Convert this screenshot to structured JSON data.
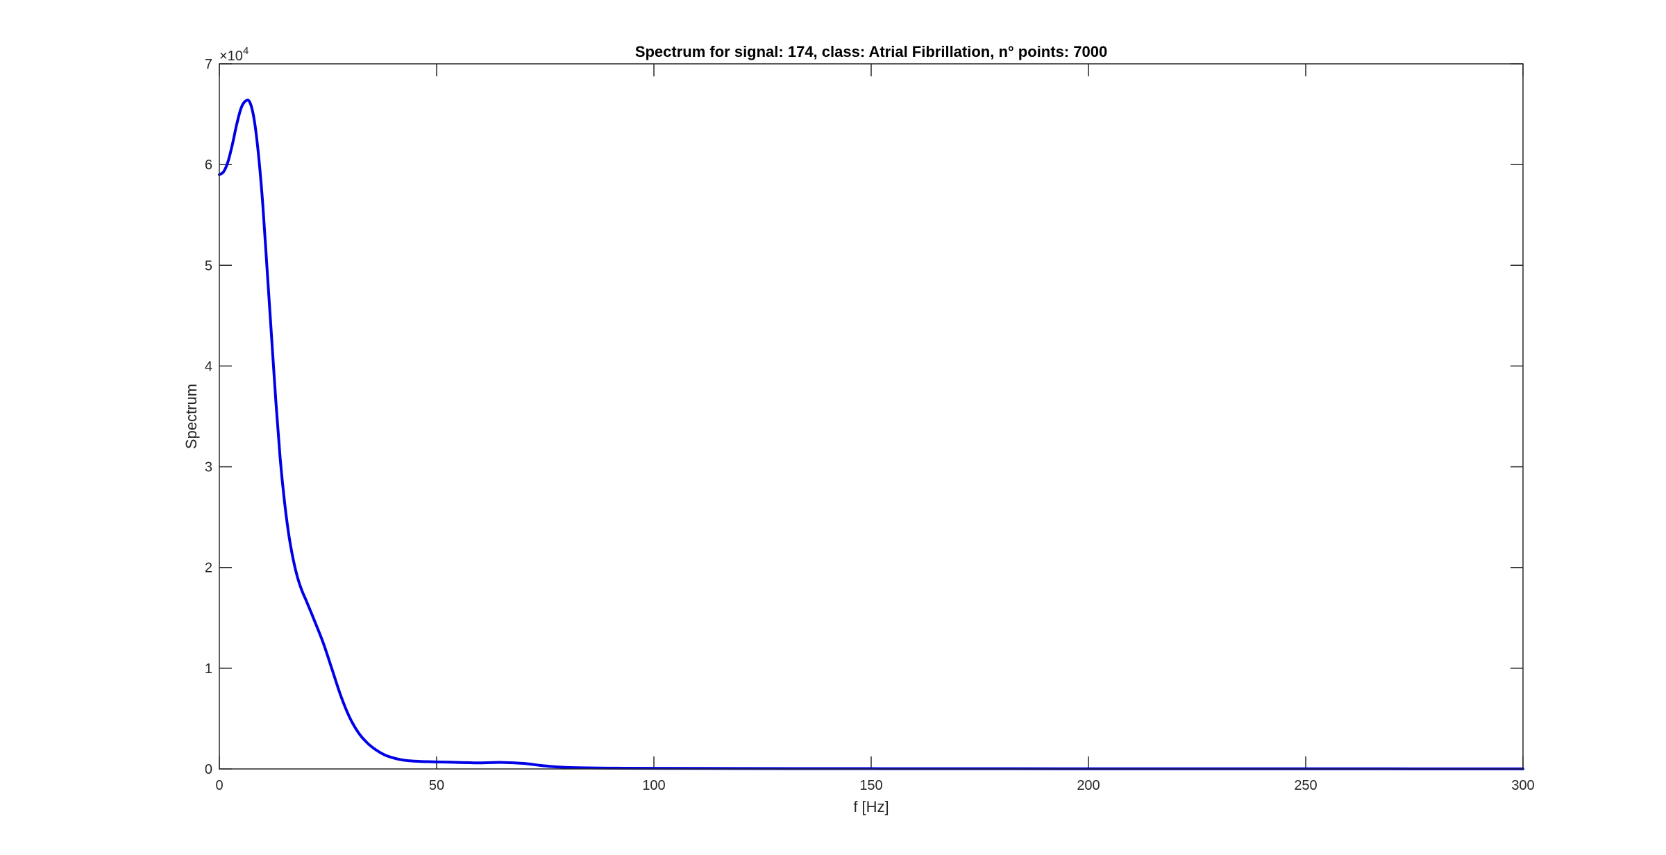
{
  "chart_data": {
    "type": "line",
    "title": "Spectrum for signal: 174, class: Atrial Fibrillation, n° points: 7000",
    "xlabel": "f [Hz]",
    "ylabel": "Spectrum",
    "xlim": [
      0,
      300
    ],
    "ylim": [
      0,
      70000
    ],
    "y_exponent_label": {
      "base": "×10",
      "exponent": "4"
    },
    "x_ticks": [
      0,
      50,
      100,
      150,
      200,
      250,
      300
    ],
    "x_tick_labels": [
      "0",
      "50",
      "100",
      "150",
      "200",
      "250",
      "300"
    ],
    "y_ticks": [
      0,
      10000,
      20000,
      30000,
      40000,
      50000,
      60000,
      70000
    ],
    "y_tick_labels": [
      "0",
      "1",
      "2",
      "3",
      "4",
      "5",
      "6",
      "7"
    ],
    "grid": false,
    "box": true,
    "colors": {
      "line": "#0000e6",
      "axes": "#262626",
      "background": "#ffffff"
    },
    "series": [
      {
        "x": [
          0,
          1,
          2,
          3,
          4,
          5,
          6,
          7,
          8,
          9,
          10,
          11,
          12,
          13,
          14,
          15,
          16,
          17,
          18,
          19,
          20,
          22,
          24,
          26,
          28,
          30,
          32,
          34,
          36,
          38,
          40,
          42,
          44,
          46,
          48,
          50,
          55,
          60,
          65,
          70,
          75,
          80,
          90,
          100,
          120,
          150,
          200,
          250,
          300
        ],
        "y": [
          59000,
          59300,
          60300,
          62000,
          64000,
          65600,
          66300,
          66200,
          64500,
          61000,
          56000,
          49500,
          43000,
          36500,
          30800,
          26500,
          23200,
          20800,
          19000,
          17700,
          16700,
          14600,
          12400,
          9800,
          7200,
          5100,
          3600,
          2600,
          1900,
          1400,
          1100,
          900,
          800,
          750,
          720,
          700,
          650,
          600,
          650,
          550,
          300,
          150,
          80,
          60,
          40,
          30,
          20,
          15,
          10
        ]
      }
    ]
  }
}
